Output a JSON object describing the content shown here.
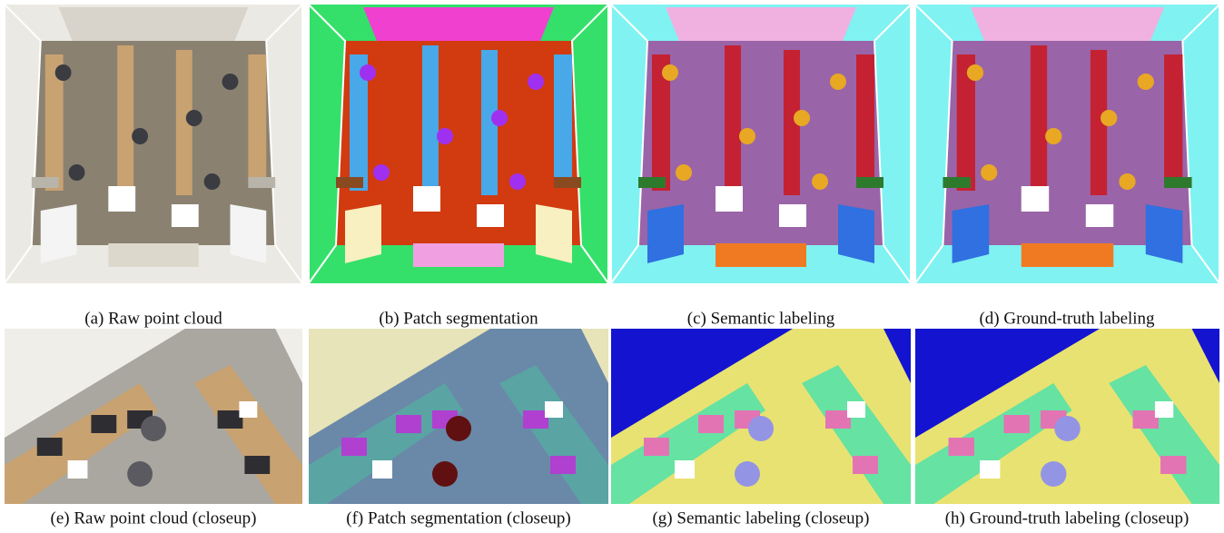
{
  "panels": [
    {
      "caption": "(a) Raw point cloud"
    },
    {
      "caption": "(b) Patch segmentation"
    },
    {
      "caption": "(c) Semantic labeling"
    },
    {
      "caption": "(d) Ground-truth labeling"
    },
    {
      "caption": "(e) Raw point cloud (closeup)"
    },
    {
      "caption": "(f) Patch segmentation (closeup)"
    },
    {
      "caption": "(g) Semantic labeling (closeup)"
    },
    {
      "caption": "(h) Ground-truth labeling (closeup)"
    }
  ]
}
